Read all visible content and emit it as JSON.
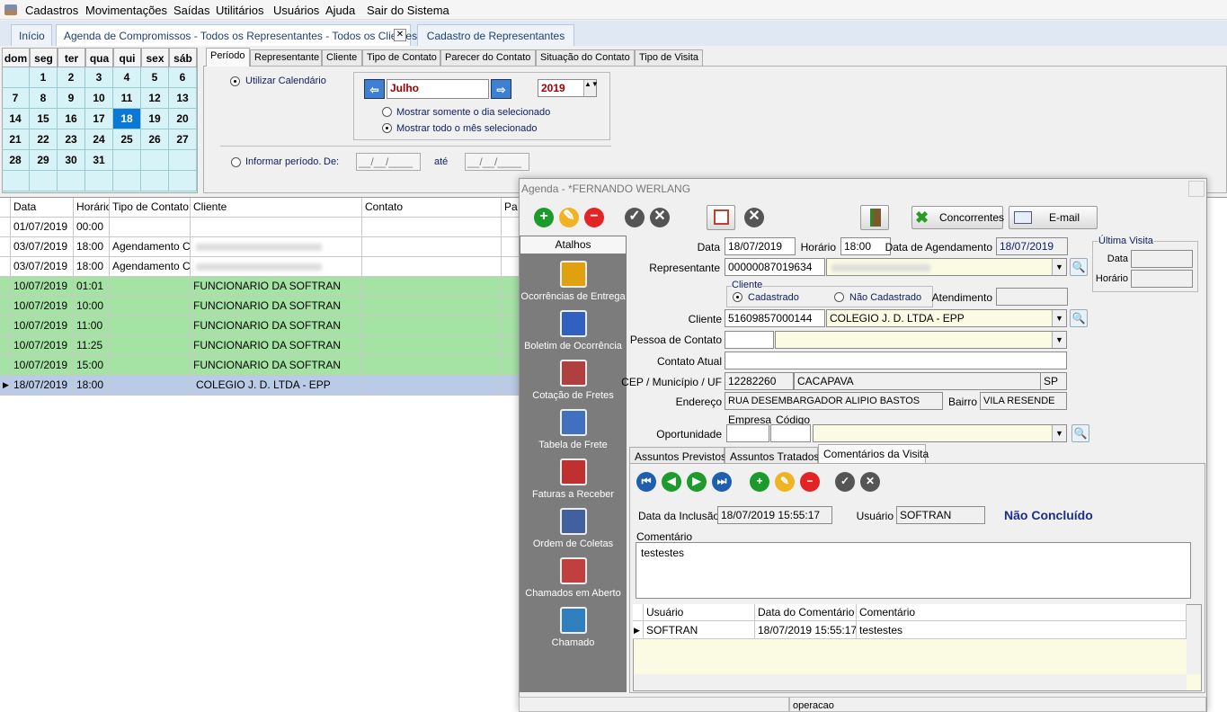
{
  "menu": [
    "Cadastros",
    "Movimentações",
    "Saídas",
    "Utilitários",
    "Usuários",
    "Ajuda",
    "Sair do Sistema"
  ],
  "tabs": [
    "Início",
    "Agenda de Compromissos - Todos os Representantes - Todos os Clientes",
    "Cadastro de Representantes"
  ],
  "calendar": {
    "weekdays": [
      "dom",
      "seg",
      "ter",
      "qua",
      "qui",
      "sex",
      "sáb"
    ],
    "weeks": [
      [
        null,
        1,
        2,
        3,
        4,
        5,
        6
      ],
      [
        7,
        8,
        9,
        10,
        11,
        12,
        13
      ],
      [
        14,
        15,
        16,
        17,
        18,
        19,
        20
      ],
      [
        21,
        22,
        23,
        24,
        25,
        26,
        27
      ],
      [
        28,
        29,
        30,
        31,
        null,
        null,
        null
      ],
      [
        null,
        null,
        null,
        null,
        null,
        null,
        null
      ]
    ],
    "selected": 18
  },
  "filter_tabs": [
    "Período",
    "Representante",
    "Cliente",
    "Tipo de Contato",
    "Parecer do Contato",
    "Situação do Contato",
    "Tipo de Visita"
  ],
  "period": {
    "use_calendar": "Utilizar Calendário",
    "month": "Julho",
    "year": "2019",
    "only_day": "Mostrar somente o dia selecionado",
    "whole_month": "Mostrar todo o mês selecionado",
    "inform": "Informar período.",
    "from": "De:",
    "from_value": "__/__/____",
    "to": "até",
    "to_value": "__/__/____"
  },
  "grid": {
    "columns": [
      "Data",
      "Horário",
      "Tipo de Contato",
      "Cliente",
      "Contato",
      "Pa"
    ],
    "rows": [
      [
        "01/07/2019",
        "00:00",
        null,
        null
      ],
      [
        "03/07/2019",
        "18:00",
        "Agendamento CR",
        null
      ],
      [
        "03/07/2019",
        "18:00",
        "Agendamento CR",
        null
      ],
      [
        "10/07/2019",
        "01:01",
        null,
        "FUNCIONARIO DA SOFTRAN"
      ],
      [
        "10/07/2019",
        "10:00",
        null,
        "FUNCIONARIO DA SOFTRAN"
      ],
      [
        "10/07/2019",
        "11:00",
        null,
        "FUNCIONARIO DA SOFTRAN"
      ],
      [
        "10/07/2019",
        "11:25",
        null,
        "FUNCIONARIO DA SOFTRAN"
      ],
      [
        "10/07/2019",
        "15:00",
        null,
        "FUNCIONARIO DA SOFTRAN"
      ],
      [
        "18/07/2019",
        "18:00",
        null,
        "COLEGIO J. D. LTDA - EPP"
      ]
    ]
  },
  "agenda": {
    "title": "Agenda - *FERNANDO WERLANG",
    "buttons": [
      "Concorrentes",
      "E-mail"
    ],
    "shortcuts_title": "Atalhos",
    "shortcuts": [
      "Ocorrências de Entrega",
      "Boletim de Ocorrência",
      "Cotação de Fretes",
      "Tabela de Frete",
      "Faturas a Receber",
      "Ordem de Coletas",
      "Chamados em Aberto",
      "Chamado"
    ],
    "form": {
      "data_label": "Data",
      "data": "18/07/2019",
      "horario_label": "Horário",
      "horario": "18:00",
      "agendamento_label": "Data de Agendamento",
      "agendamento": "18/07/2019",
      "ultima_visita": "Última Visita",
      "uv_data_label": "Data",
      "uv_horario_label": "Horário",
      "representante_label": "Representante",
      "representante": "00000087019634",
      "cliente_group": "Cliente",
      "cadastrado": "Cadastrado",
      "nao_cadastrado": "Não Cadastrado",
      "atendimento_label": "Atendimento",
      "cliente_label": "Cliente",
      "cliente_codigo": "51609857000144",
      "cliente_nome": "COLEGIO J. D. LTDA - EPP",
      "pessoa_label": "Pessoa de Contato",
      "contato_atual_label": "Contato Atual",
      "cep_label": "CEP / Município / UF",
      "cep": "12282260",
      "municipio": "CACAPAVA",
      "uf": "SP",
      "endereco_label": "Endereço",
      "endereco": "RUA DESEMBARGADOR ALIPIO BASTOS",
      "bairro_label": "Bairro",
      "bairro": "VILA RESENDE",
      "empresa_label": "Empresa",
      "codigo_label": "Código",
      "oportunidade_label": "Oportunidade"
    },
    "tabs": [
      "Assuntos Previstos",
      "Assuntos Tratados",
      "Comentários da Visita"
    ],
    "comments": {
      "inclusao_label": "Data da Inclusão",
      "inclusao": "18/07/2019 15:55:17",
      "usuario_label": "Usuário",
      "usuario": "SOFTRAN",
      "status": "Não Concluído",
      "comentario_label": "Comentário",
      "comentario": "testestes",
      "columns": [
        "Usuário",
        "Data do Comentário",
        "Comentário"
      ],
      "rows": [
        [
          "SOFTRAN",
          "18/07/2019 15:55:17",
          "testestes"
        ]
      ]
    },
    "status_bar": "operacao"
  }
}
